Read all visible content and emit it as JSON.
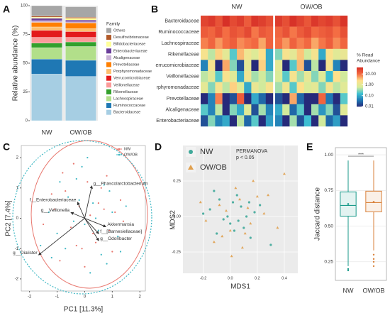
{
  "chart_data": [
    {
      "type": "stacked_bar",
      "panel": "A",
      "ylabel": "Relative abundance (%)",
      "categories": [
        "NW",
        "OW/OB"
      ],
      "ylim": [
        0,
        100
      ],
      "yticks": [
        0,
        25,
        50,
        75,
        100
      ],
      "legend_title": "Family",
      "series": [
        {
          "name": "Others",
          "color": "#a6a6a6",
          "values": [
            9,
            9
          ]
        },
        {
          "name": "Desulfovibrionaceae",
          "color": "#b15928",
          "values": [
            1,
            1
          ]
        },
        {
          "name": "Bifidobacteriaceae",
          "color": "#ffff99",
          "values": [
            1,
            1.5
          ]
        },
        {
          "name": "Enterobacteriaceae",
          "color": "#6a3d9a",
          "values": [
            2,
            1.5
          ]
        },
        {
          "name": "Alcaligenaceae",
          "color": "#cab2d6",
          "values": [
            1.5,
            1
          ]
        },
        {
          "name": "Prevotellaceae",
          "color": "#ff7f00",
          "values": [
            4,
            5
          ]
        },
        {
          "name": "Porphyromonadaceae",
          "color": "#fdbf6f",
          "values": [
            3,
            2.5
          ]
        },
        {
          "name": "Verrucomicrobiaceae",
          "color": "#e31a1c",
          "values": [
            6,
            5
          ]
        },
        {
          "name": "Veillonellaceae",
          "color": "#fb9a99",
          "values": [
            5,
            4
          ]
        },
        {
          "name": "Rikenellaceae",
          "color": "#33a02c",
          "values": [
            4,
            4
          ]
        },
        {
          "name": "Lachnospiraceae",
          "color": "#b2df8a",
          "values": [
            10,
            12
          ]
        },
        {
          "name": "Ruminococcaceae",
          "color": "#1f78b4",
          "values": [
            13,
            14
          ]
        },
        {
          "name": "Bacteroidaceae",
          "color": "#a6cee3",
          "values": [
            40.5,
            38.5
          ]
        }
      ]
    },
    {
      "type": "heatmap",
      "panel": "B",
      "rows": [
        "Bacteroidaceae",
        "Ruminococcaceae",
        "Lachnospiraceae",
        "Rikenellaceae",
        "errucomicrobiaceae",
        "Veillonellaceae",
        "rphyromonadaceae",
        "Prevotellaceae",
        "Alcaligenaceae",
        "Enterobacteriaceae"
      ],
      "colorbar_title": [
        "% Read",
        "Abundance"
      ],
      "log": true,
      "zlim": [
        0.01,
        40
      ],
      "zticks": [
        {
          "value": 10,
          "label": "10.00"
        },
        {
          "value": 1,
          "label": "1.00"
        },
        {
          "value": 0.1,
          "label": "0.10"
        },
        0.01
      ],
      "colors": [
        "#262a7a",
        "#1f78b4",
        "#3ec1d3",
        "#d7ec9a",
        "#fee08b",
        "#f46d43",
        "#d73027"
      ],
      "series": [
        {
          "name": "NW",
          "values": [
            [
              25,
              32,
              18,
              40,
              22,
              30,
              15,
              35,
              28,
              20
            ],
            [
              15,
              12,
              20,
              10,
              18,
              14,
              22,
              9,
              16,
              13
            ],
            [
              8,
              12,
              6,
              10,
              14,
              7,
              9,
              11,
              5,
              13
            ],
            [
              2,
              0.5,
              3,
              1,
              0.2,
              4,
              1.5,
              0.8,
              2.5,
              0.1
            ],
            [
              0.05,
              2,
              0.01,
              5,
              0.3,
              0.02,
              1,
              0.01,
              3,
              0.1
            ],
            [
              0.5,
              1,
              0.2,
              2,
              0.8,
              0.1,
              1.5,
              0.4,
              0.6,
              0.3
            ],
            [
              1,
              0.3,
              2,
              0.5,
              3,
              0.8,
              0.1,
              1.2,
              0.6,
              2
            ],
            [
              0.01,
              0.05,
              8,
              0.01,
              0.02,
              15,
              0.01,
              0.1,
              0.03,
              0.01
            ],
            [
              0.2,
              0.05,
              0.5,
              0.01,
              0.3,
              0.1,
              0.8,
              0.02,
              0.4,
              0.05
            ],
            [
              0.02,
              0.3,
              0.05,
              0.1,
              0.01,
              0.5,
              0.03,
              0.2,
              0.01,
              0.08
            ]
          ]
        },
        {
          "name": "OW/OB",
          "values": [
            [
              30,
              20,
              38,
              26,
              17,
              33,
              24,
              29,
              19,
              36
            ],
            [
              12,
              18,
              9,
              15,
              21,
              11,
              14,
              17,
              10,
              19
            ],
            [
              10,
              6,
              13,
              8,
              11,
              5,
              9,
              14,
              7,
              12
            ],
            [
              0.3,
              2,
              1,
              3.5,
              0.6,
              1.8,
              0.1,
              2.2,
              0.9,
              1.2
            ],
            [
              1,
              0.01,
              0.2,
              4,
              0.02,
              0.5,
              0.01,
              2,
              0.05,
              0.01
            ],
            [
              0.7,
              0.2,
              1.8,
              0.4,
              1.1,
              0.3,
              0.9,
              0.15,
              2.5,
              0.6
            ],
            [
              0.4,
              1.5,
              0.2,
              2.5,
              0.7,
              1,
              0.3,
              1.8,
              0.5,
              0.9
            ],
            [
              0.02,
              0.01,
              5,
              0.03,
              0.01,
              0.01,
              12,
              0.04,
              0.01,
              0.2
            ],
            [
              0.1,
              0.6,
              0.03,
              0.2,
              0.01,
              0.4,
              0.07,
              0.3,
              0.02,
              0.9
            ],
            [
              0.05,
              0.01,
              0.4,
              0.02,
              0.15,
              0.01,
              0.6,
              0.03,
              0.08,
              0.01
            ]
          ]
        }
      ]
    },
    {
      "type": "biplot",
      "panel": "C",
      "xlabel": "PC1 [11.3%]",
      "ylabel": "PC2 [7.4%]",
      "xlim": [
        -2.3,
        2.2
      ],
      "ylim": [
        -2.4,
        2.4
      ],
      "xticks": [
        -2,
        -1,
        0,
        1,
        2
      ],
      "yticks": [
        -2,
        -1,
        0,
        1,
        2
      ],
      "series": [
        {
          "name": "NW",
          "color": "#e8766d",
          "x": [
            -1.2,
            -0.8,
            -0.5,
            -0.2,
            0.1,
            0.4,
            0.7,
            1.0,
            1.3,
            -1.5,
            -0.9,
            -0.3,
            0.2,
            0.6,
            0.9,
            1.4,
            -1.1,
            -0.4,
            0.0,
            0.5,
            0.8,
            -0.7,
            0.3,
            1.1,
            -0.1
          ],
          "values": [
            0.8,
            1.5,
            -0.3,
            0.4,
            1.2,
            -0.8,
            0.3,
            -1.1,
            0.6,
            -0.2,
            -1.4,
            -0.9,
            0.1,
            1.0,
            -0.4,
            -0.1,
            0.3,
            1.8,
            -1.6,
            0.5,
            1.4,
            0.9,
            -0.5,
            0.2,
            -1.0
          ]
        },
        {
          "name": "OW/OB",
          "color": "#3fb8c4",
          "x": [
            -1.0,
            -0.6,
            -0.3,
            0.0,
            0.3,
            0.6,
            0.9,
            1.2,
            -1.3,
            -0.7,
            -0.1,
            0.4,
            0.8,
            1.5,
            -1.6,
            -0.4,
            0.2,
            0.7,
            1.0,
            -0.9,
            -0.2,
            0.5,
            1.3,
            -1.2,
            0.1
          ],
          "values": [
            -0.5,
            0.7,
            1.3,
            -0.2,
            0.5,
            -1.2,
            0.9,
            -0.6,
            0.2,
            -1.0,
            1.7,
            0.0,
            -1.5,
            0.4,
            -0.9,
            -0.1,
            -1.8,
            1.1,
            0.2,
            1.2,
            0.6,
            -0.4,
            -1.1,
            -1.3,
            2.0
          ]
        }
      ],
      "loadings": [
        {
          "name": "g__Phascolarctobacterium",
          "x": 0.26,
          "y": 1.07
        },
        {
          "name": "f__Enterobacteriaceae",
          "x": -0.26,
          "y": 0.53
        },
        {
          "name": "g__Veillonella",
          "x": -0.5,
          "y": 0.19
        },
        {
          "name": "Akkermansia",
          "x": 0.77,
          "y": -0.28
        },
        {
          "name": "f__[Barnesiellaceae]",
          "x": 0.51,
          "y": -0.51
        },
        {
          "name": "g__Odoribacter",
          "x": 0.51,
          "y": -0.74
        },
        {
          "name": "g__Dialister",
          "x": -1.67,
          "y": -1.21
        }
      ]
    },
    {
      "type": "scatter",
      "panel": "D",
      "xlabel": "MDS1",
      "ylabel": "MDS2",
      "annotation": [
        "PERMANOVA",
        "p < 0.05"
      ],
      "xlim": [
        -0.35,
        0.5
      ],
      "ylim": [
        -0.4,
        0.5
      ],
      "xticks": [
        -0.2,
        {
          "value": 0,
          "label": "0.0"
        },
        0.2,
        0.4
      ],
      "yticks": [
        -0.25,
        {
          "value": 0,
          "label": "0.00"
        },
        0.25
      ],
      "grid": true,
      "series": [
        {
          "name": "NW",
          "color": "#3fa99a",
          "marker": "circle",
          "x": [
            -0.15,
            -0.05,
            0.02,
            0.1,
            0.18,
            -0.1,
            0.05,
            0.12,
            -0.2,
            0.0,
            0.08,
            0.15,
            -0.08,
            0.22,
            0.03,
            -0.12,
            0.06,
            0.3,
            -0.02,
            0.14
          ],
          "values": [
            0.05,
            -0.02,
            0.1,
            -0.08,
            0.03,
            -0.12,
            0.15,
            0.0,
            0.02,
            -0.05,
            0.07,
            -0.15,
            0.12,
            0.08,
            -0.1,
            0.18,
            -0.03,
            -0.2,
            0.0,
            0.1
          ]
        },
        {
          "name": "OW/OB",
          "color": "#e0a04e",
          "marker": "triangle",
          "x": [
            -0.18,
            -0.08,
            0.0,
            0.07,
            0.15,
            0.25,
            -0.12,
            0.04,
            0.11,
            0.2,
            -0.03,
            0.09,
            0.35,
            -0.22,
            0.01,
            0.17,
            0.28,
            -0.06,
            0.13,
            0.4
          ],
          "values": [
            -0.03,
            0.08,
            -0.1,
            0.12,
            -0.05,
            0.02,
            -0.18,
            0.2,
            -0.12,
            0.14,
            0.04,
            -0.22,
            -0.08,
            0.1,
            -0.28,
            0.25,
            0.15,
            -0.14,
            0.06,
            0.3
          ]
        }
      ]
    },
    {
      "type": "box",
      "panel": "E",
      "ylabel": "Jaccard distance",
      "annotation": "****",
      "categories": [
        "NW",
        "OW/OB"
      ],
      "colors": [
        "#1a9a8a",
        "#d9823b"
      ],
      "ylim": [
        0.12,
        1.05
      ],
      "yticks": [
        0.25,
        {
          "value": 0.5,
          "label": "0.50"
        },
        0.75,
        {
          "value": 1,
          "label": "1.00"
        }
      ],
      "grid": true,
      "whisker_low": [
        0.22,
        0.33
      ],
      "q1": [
        0.57,
        0.6
      ],
      "median": [
        0.645,
        0.665
      ],
      "q3": [
        0.74,
        0.745
      ],
      "whisker_high": [
        0.96,
        0.96
      ],
      "mean": [
        0.655,
        0.67
      ],
      "outliers": [
        [
          0.2,
          0.19
        ],
        [
          0.3,
          0.27,
          0.25,
          0.22
        ]
      ]
    }
  ]
}
